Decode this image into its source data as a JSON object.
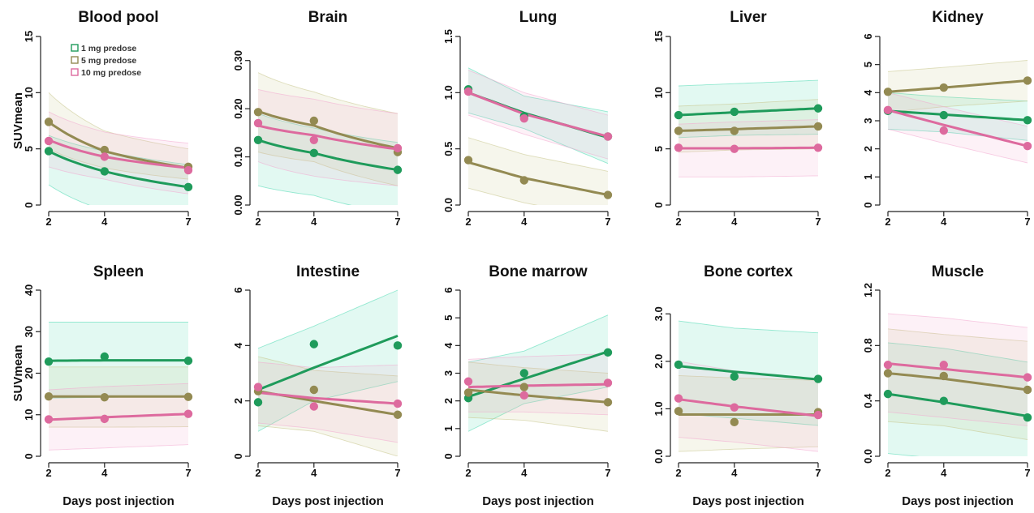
{
  "figure": {
    "legend": {
      "entries": [
        "1 mg predose",
        "5 mg predose",
        "10 mg predose"
      ],
      "placement": "top-left of first panel"
    },
    "colors": {
      "1 mg predose": "#1f9b5b",
      "5 mg predose": "#938a52",
      "10 mg predose": "#dd6a9e"
    },
    "band_colors": {
      "1 mg predose": "#48d9b1",
      "5 mg predose": "#c6c58a",
      "10 mg predose": "#f3a7cf"
    }
  },
  "chart_data": [
    {
      "type": "line",
      "title": "Blood pool",
      "xlabel": "",
      "ylabel": "SUVmean",
      "x": [
        2,
        4,
        7
      ],
      "xlim": [
        2,
        7
      ],
      "ylim": [
        0,
        15
      ],
      "yticks": [
        "0",
        "5",
        "10",
        "15"
      ],
      "xticks": [
        "2",
        "4",
        "7"
      ],
      "log_fit": true,
      "series": [
        {
          "name": "1 mg predose",
          "points": [
            4.8,
            3.0,
            1.6
          ],
          "fit": [
            4.8,
            3.0,
            1.6
          ],
          "band": {
            "lower": [
              1.8,
              -0.5,
              -1.0
            ],
            "upper": [
              6.2,
              4.8,
              3.6
            ]
          }
        },
        {
          "name": "5 mg predose",
          "points": [
            7.4,
            4.9,
            3.4
          ],
          "fit": [
            7.4,
            4.8,
            3.3
          ],
          "band": {
            "lower": [
              5.0,
              3.3,
              2.3
            ],
            "upper": [
              10.0,
              6.6,
              5.0
            ]
          }
        },
        {
          "name": "10 mg predose",
          "points": [
            5.7,
            4.3,
            3.1
          ],
          "fit": [
            5.8,
            4.3,
            3.3
          ],
          "band": {
            "lower": [
              3.4,
              2.3,
              1.0
            ],
            "upper": [
              8.3,
              6.5,
              5.5
            ]
          }
        }
      ]
    },
    {
      "type": "line",
      "title": "Brain",
      "xlabel": "",
      "ylabel": "",
      "x": [
        2,
        4,
        7
      ],
      "xlim": [
        2,
        7
      ],
      "ylim": [
        0,
        0.35
      ],
      "yticks": [
        "0.00",
        "0.10",
        "0.20",
        "0.30"
      ],
      "xticks": [
        "2",
        "4",
        "7"
      ],
      "log_fit": true,
      "series": [
        {
          "name": "1 mg predose",
          "points": [
            0.135,
            0.108,
            0.073
          ],
          "fit": [
            0.135,
            0.108,
            0.073
          ],
          "band": {
            "lower": [
              0.04,
              0.02,
              -0.02
            ],
            "upper": [
              0.19,
              0.16,
              0.13
            ]
          }
        },
        {
          "name": "5 mg predose",
          "points": [
            0.193,
            0.175,
            0.11
          ],
          "fit": [
            0.195,
            0.165,
            0.118
          ],
          "band": {
            "lower": [
              0.11,
              0.09,
              0.04
            ],
            "upper": [
              0.275,
              0.235,
              0.19
            ]
          }
        },
        {
          "name": "10 mg predose",
          "points": [
            0.17,
            0.135,
            0.118
          ],
          "fit": [
            0.165,
            0.145,
            0.116
          ],
          "band": {
            "lower": [
              0.09,
              0.06,
              0.04
            ],
            "upper": [
              0.24,
              0.22,
              0.19
            ]
          }
        }
      ]
    },
    {
      "type": "line",
      "title": "Lung",
      "xlabel": "",
      "ylabel": "",
      "x": [
        2,
        4,
        7
      ],
      "xlim": [
        2,
        7
      ],
      "ylim": [
        0,
        1.5
      ],
      "yticks": [
        "0.0",
        "0.5",
        "1.0",
        "1.5"
      ],
      "xticks": [
        "2",
        "4",
        "7"
      ],
      "log_fit": false,
      "series": [
        {
          "name": "1 mg predose",
          "points": [
            1.03,
            0.79,
            0.61
          ],
          "fit": [
            1.0,
            0.82,
            0.6
          ],
          "band": {
            "lower": [
              0.82,
              0.68,
              0.37
            ],
            "upper": [
              1.22,
              0.97,
              0.83
            ]
          }
        },
        {
          "name": "5 mg predose",
          "points": [
            0.4,
            0.22,
            0.09
          ],
          "fit": [
            0.38,
            0.24,
            0.09
          ],
          "band": {
            "lower": [
              0.15,
              0.02,
              -0.12
            ],
            "upper": [
              0.6,
              0.45,
              0.3
            ]
          }
        },
        {
          "name": "10 mg predose",
          "points": [
            1.01,
            0.77,
            0.61
          ],
          "fit": [
            1.0,
            0.81,
            0.61
          ],
          "band": {
            "lower": [
              0.8,
              0.63,
              0.41
            ],
            "upper": [
              1.2,
              1.0,
              0.8
            ]
          }
        }
      ]
    },
    {
      "type": "line",
      "title": "Liver",
      "xlabel": "",
      "ylabel": "",
      "x": [
        2,
        4,
        7
      ],
      "xlim": [
        2,
        7
      ],
      "ylim": [
        0,
        15
      ],
      "yticks": [
        "0",
        "5",
        "10",
        "15"
      ],
      "xticks": [
        "2",
        "4",
        "7"
      ],
      "log_fit": false,
      "series": [
        {
          "name": "1 mg predose",
          "points": [
            8.0,
            8.3,
            8.6
          ],
          "fit": [
            8.0,
            8.25,
            8.6
          ],
          "band": {
            "lower": [
              6.0,
              6.2,
              6.3
            ],
            "upper": [
              10.6,
              10.8,
              11.1
            ]
          }
        },
        {
          "name": "5 mg predose",
          "points": [
            6.6,
            6.6,
            7.0
          ],
          "fit": [
            6.6,
            6.75,
            7.0
          ],
          "band": {
            "lower": [
              4.7,
              4.9,
              5.0
            ],
            "upper": [
              8.8,
              9.0,
              9.4
            ]
          }
        },
        {
          "name": "10 mg predose",
          "points": [
            5.1,
            5.0,
            5.1
          ],
          "fit": [
            5.05,
            5.05,
            5.1
          ],
          "band": {
            "lower": [
              2.5,
              2.5,
              2.6
            ],
            "upper": [
              7.2,
              7.4,
              7.6
            ]
          }
        }
      ]
    },
    {
      "type": "line",
      "title": "Kidney",
      "xlabel": "",
      "ylabel": "",
      "x": [
        2,
        4,
        7
      ],
      "xlim": [
        2,
        7
      ],
      "ylim": [
        0,
        6
      ],
      "yticks": [
        "0",
        "1",
        "2",
        "3",
        "4",
        "5",
        "6"
      ],
      "xticks": [
        "2",
        "4",
        "7"
      ],
      "log_fit": false,
      "series": [
        {
          "name": "1 mg predose",
          "points": [
            3.35,
            3.2,
            3.02
          ],
          "fit": [
            3.35,
            3.22,
            3.02
          ],
          "band": {
            "lower": [
              2.7,
              2.6,
              2.3
            ],
            "upper": [
              4.0,
              3.85,
              3.7
            ]
          }
        },
        {
          "name": "5 mg predose",
          "points": [
            4.03,
            4.18,
            4.43
          ],
          "fit": [
            4.03,
            4.18,
            4.43
          ],
          "band": {
            "lower": [
              3.3,
              3.5,
              3.7
            ],
            "upper": [
              4.75,
              4.9,
              5.15
            ]
          }
        },
        {
          "name": "10 mg predose",
          "points": [
            3.38,
            2.65,
            2.1
          ],
          "fit": [
            3.38,
            2.85,
            2.1
          ],
          "band": {
            "lower": [
              2.7,
              2.2,
              1.5
            ],
            "upper": [
              4.0,
              3.5,
              2.8
            ]
          }
        }
      ]
    },
    {
      "type": "line",
      "title": "Spleen",
      "xlabel": "Days post injection",
      "ylabel": "SUVmean",
      "x": [
        2,
        4,
        7
      ],
      "xlim": [
        2,
        7
      ],
      "ylim": [
        0,
        40
      ],
      "yticks": [
        "0",
        "10",
        "20",
        "30",
        "40"
      ],
      "xticks": [
        "2",
        "4",
        "7"
      ],
      "log_fit": false,
      "series": [
        {
          "name": "1 mg predose",
          "points": [
            22.8,
            24.0,
            23.0
          ],
          "fit": [
            23.0,
            23.1,
            23.1
          ],
          "band": {
            "lower": [
              14.0,
              14.2,
              14.3
            ],
            "upper": [
              32.3,
              32.3,
              32.3
            ]
          }
        },
        {
          "name": "5 mg predose",
          "points": [
            14.4,
            14.2,
            14.3
          ],
          "fit": [
            14.4,
            14.4,
            14.4
          ],
          "band": {
            "lower": [
              7.0,
              7.0,
              7.1
            ],
            "upper": [
              21.5,
              21.5,
              21.5
            ]
          }
        },
        {
          "name": "10 mg predose",
          "points": [
            8.9,
            9.0,
            10.2
          ],
          "fit": [
            8.8,
            9.4,
            10.2
          ],
          "band": {
            "lower": [
              1.5,
              2.0,
              2.8
            ],
            "upper": [
              16.0,
              16.8,
              17.5
            ]
          }
        }
      ]
    },
    {
      "type": "line",
      "title": "Intestine",
      "xlabel": "Days post injection",
      "ylabel": "",
      "x": [
        2,
        4,
        7
      ],
      "xlim": [
        2,
        7
      ],
      "ylim": [
        0,
        6
      ],
      "yticks": [
        "0",
        "2",
        "4",
        "6"
      ],
      "xticks": [
        "2",
        "4",
        "7"
      ],
      "log_fit": false,
      "series": [
        {
          "name": "1 mg predose",
          "points": [
            1.95,
            4.05,
            4.0
          ],
          "fit": [
            2.4,
            3.2,
            4.35
          ],
          "band": {
            "lower": [
              0.9,
              2.0,
              2.7
            ],
            "upper": [
              3.9,
              4.7,
              6.0
            ]
          }
        },
        {
          "name": "5 mg predose",
          "points": [
            2.35,
            2.4,
            1.5
          ],
          "fit": [
            2.35,
            2.0,
            1.5
          ],
          "band": {
            "lower": [
              1.1,
              0.9,
              0.0
            ],
            "upper": [
              3.6,
              3.1,
              2.9
            ]
          }
        },
        {
          "name": "10 mg predose",
          "points": [
            2.5,
            1.8,
            1.9
          ],
          "fit": [
            2.3,
            2.1,
            1.9
          ],
          "band": {
            "lower": [
              1.2,
              1.0,
              0.5
            ],
            "upper": [
              3.4,
              3.2,
              3.3
            ]
          }
        }
      ]
    },
    {
      "type": "line",
      "title": "Bone marrow",
      "xlabel": "Days post injection",
      "ylabel": "",
      "x": [
        2,
        4,
        7
      ],
      "xlim": [
        2,
        7
      ],
      "ylim": [
        0,
        6
      ],
      "yticks": [
        "0",
        "1",
        "2",
        "3",
        "4",
        "5",
        "6"
      ],
      "xticks": [
        "2",
        "4",
        "7"
      ],
      "log_fit": false,
      "series": [
        {
          "name": "1 mg predose",
          "points": [
            2.1,
            3.0,
            3.75
          ],
          "fit": [
            2.15,
            2.8,
            3.78
          ],
          "band": {
            "lower": [
              0.9,
              1.9,
              2.5
            ],
            "upper": [
              3.4,
              3.8,
              5.1
            ]
          }
        },
        {
          "name": "5 mg predose",
          "points": [
            2.3,
            2.5,
            1.95
          ],
          "fit": [
            2.4,
            2.2,
            1.95
          ],
          "band": {
            "lower": [
              1.4,
              1.3,
              0.9
            ],
            "upper": [
              3.4,
              3.2,
              3.0
            ]
          }
        },
        {
          "name": "10 mg predose",
          "points": [
            2.7,
            2.2,
            2.65
          ],
          "fit": [
            2.5,
            2.55,
            2.6
          ],
          "band": {
            "lower": [
              1.6,
              1.6,
              1.5
            ],
            "upper": [
              3.5,
              3.6,
              3.7
            ]
          }
        }
      ]
    },
    {
      "type": "line",
      "title": "Bone cortex",
      "xlabel": "Days post injection",
      "ylabel": "",
      "x": [
        2,
        4,
        7
      ],
      "xlim": [
        2,
        7
      ],
      "ylim": [
        0,
        3.5
      ],
      "yticks": [
        "0.0",
        "1.0",
        "2.0",
        "3.0"
      ],
      "xticks": [
        "2",
        "4",
        "7"
      ],
      "log_fit": false,
      "series": [
        {
          "name": "1 mg predose",
          "points": [
            1.93,
            1.68,
            1.63
          ],
          "fit": [
            1.9,
            1.78,
            1.62
          ],
          "band": {
            "lower": [
              0.9,
              0.8,
              0.65
            ],
            "upper": [
              2.85,
              2.7,
              2.6
            ]
          }
        },
        {
          "name": "5 mg predose",
          "points": [
            0.95,
            0.72,
            0.93
          ],
          "fit": [
            0.88,
            0.88,
            0.88
          ],
          "band": {
            "lower": [
              0.1,
              0.15,
              0.2
            ],
            "upper": [
              1.7,
              1.65,
              1.6
            ]
          }
        },
        {
          "name": "10 mg predose",
          "points": [
            1.22,
            1.03,
            0.87
          ],
          "fit": [
            1.2,
            1.05,
            0.85
          ],
          "band": {
            "lower": [
              0.4,
              0.3,
              0.1
            ],
            "upper": [
              2.0,
              1.8,
              1.6
            ]
          }
        }
      ]
    },
    {
      "type": "line",
      "title": "Muscle",
      "xlabel": "Days post injection",
      "ylabel": "",
      "x": [
        2,
        4,
        7
      ],
      "xlim": [
        2,
        7
      ],
      "ylim": [
        0,
        1.2
      ],
      "yticks": [
        "0.0",
        "0.4",
        "0.8",
        "1.2"
      ],
      "xticks": [
        "2",
        "4",
        "7"
      ],
      "log_fit": false,
      "series": [
        {
          "name": "1 mg predose",
          "points": [
            0.45,
            0.4,
            0.28
          ],
          "fit": [
            0.45,
            0.39,
            0.29
          ],
          "band": {
            "lower": [
              0.02,
              -0.02,
              -0.1
            ],
            "upper": [
              0.82,
              0.78,
              0.68
            ]
          }
        },
        {
          "name": "5 mg predose",
          "points": [
            0.6,
            0.58,
            0.48
          ],
          "fit": [
            0.6,
            0.56,
            0.48
          ],
          "band": {
            "lower": [
              0.25,
              0.22,
              0.12
            ],
            "upper": [
              0.92,
              0.88,
              0.83
            ]
          }
        },
        {
          "name": "10 mg predose",
          "points": [
            0.66,
            0.66,
            0.57
          ],
          "fit": [
            0.67,
            0.63,
            0.57
          ],
          "band": {
            "lower": [
              0.32,
              0.28,
              0.22
            ],
            "upper": [
              1.03,
              1.0,
              0.93
            ]
          }
        }
      ]
    }
  ]
}
